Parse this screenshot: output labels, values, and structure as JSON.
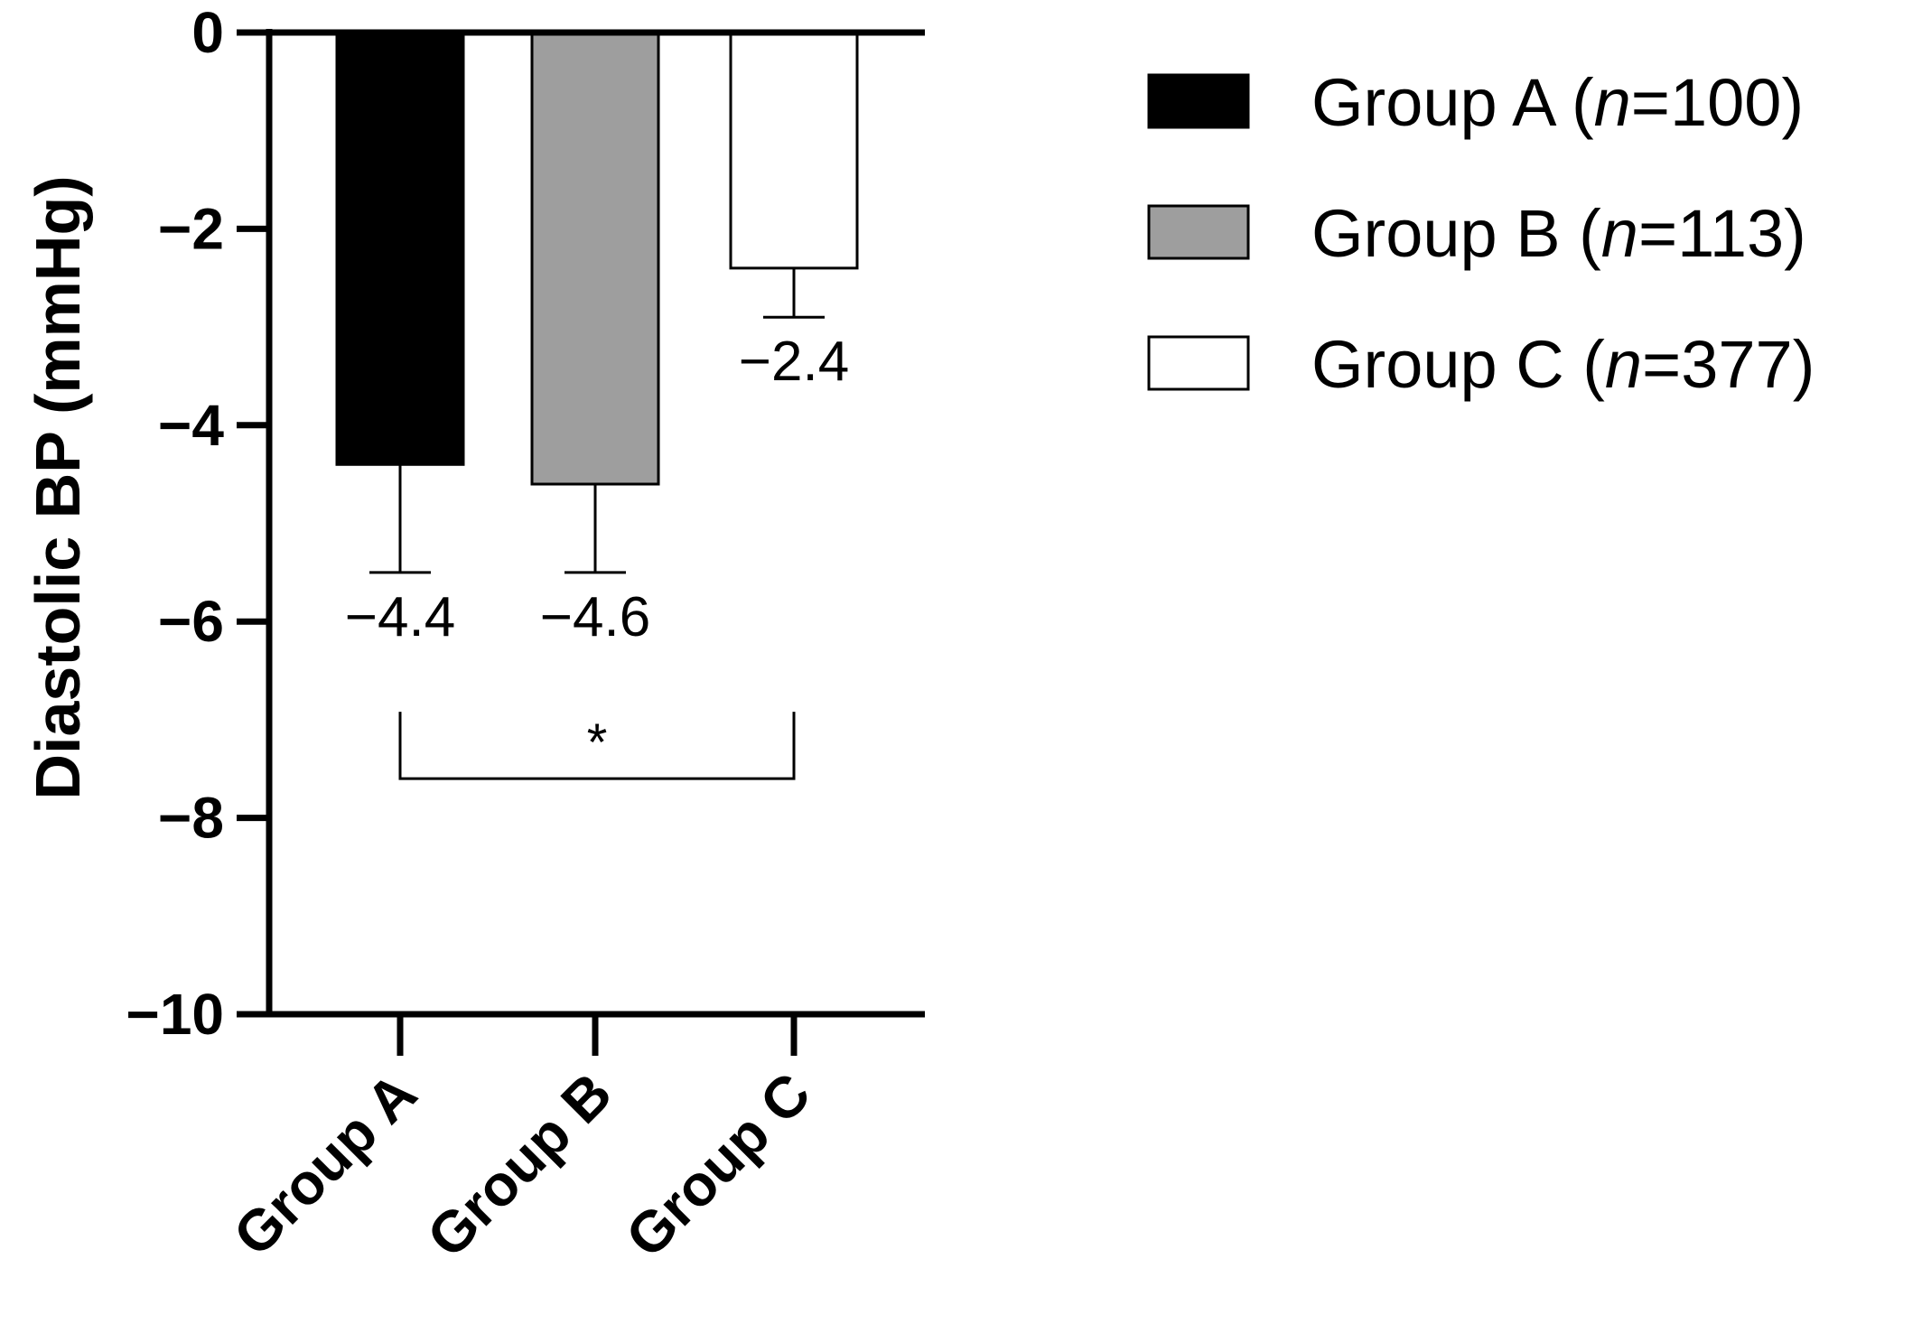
{
  "chart_data": {
    "type": "bar",
    "categories": [
      "Group A",
      "Group B",
      "Group C"
    ],
    "values": [
      -4.4,
      -4.6,
      -2.4
    ],
    "error_low": [
      -5.5,
      -5.5,
      -2.9
    ],
    "data_labels": [
      "−4.4",
      "−4.6",
      "−2.4"
    ],
    "colors": [
      "#000000",
      "#9e9e9e",
      "#ffffff"
    ],
    "ylabel": "Diastolic BP (mmHg)",
    "xlabel": "",
    "ylim": [
      -10,
      0
    ],
    "yticks": [
      0,
      -2,
      -4,
      -6,
      -8,
      -10
    ],
    "ytick_labels": [
      "0",
      "−2",
      "−4",
      "−6",
      "−8",
      "−10"
    ],
    "legend": {
      "position": "top-right",
      "entries": [
        {
          "prefix": "Group A (",
          "italic": "n",
          "suffix": "=100)",
          "color": "#000000"
        },
        {
          "prefix": "Group B (",
          "italic": "n",
          "suffix": "=113)",
          "color": "#9e9e9e"
        },
        {
          "prefix": "Group C (",
          "italic": "n",
          "suffix": "=377)",
          "color": "#ffffff"
        }
      ]
    },
    "significance": {
      "from": "Group A",
      "to": "Group C",
      "label": "*",
      "level": -7.6
    }
  }
}
